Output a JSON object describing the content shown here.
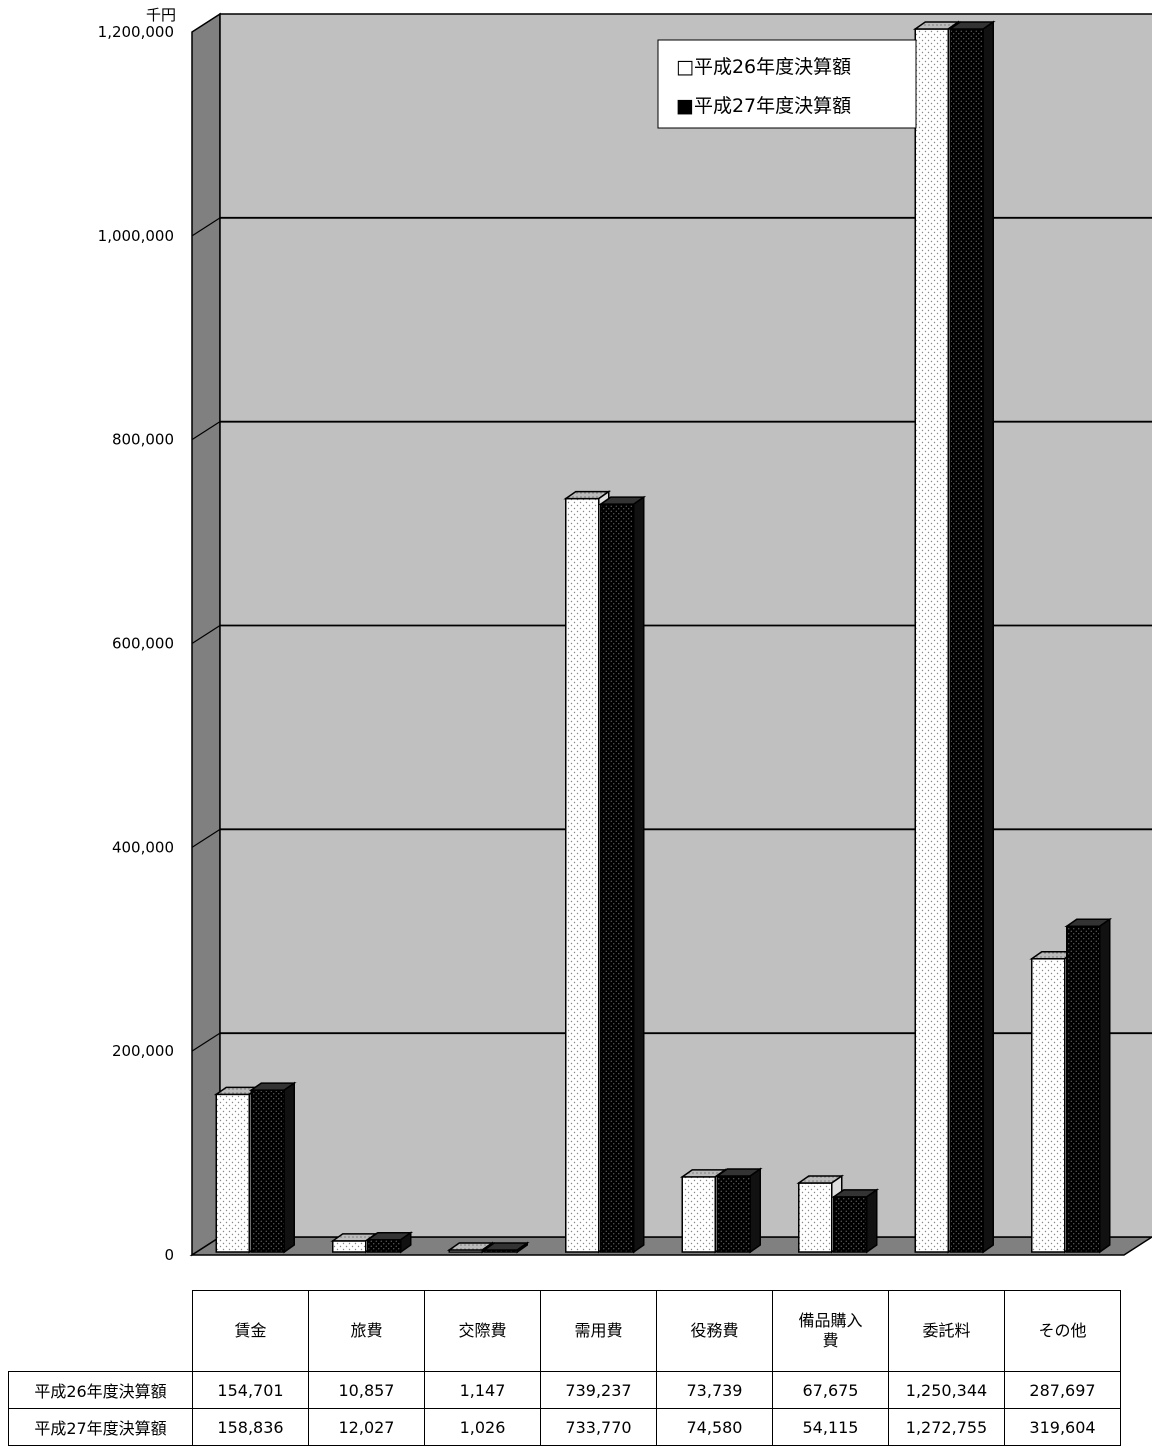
{
  "chart_data": {
    "type": "bar",
    "unit_label": "千円",
    "ylim": [
      0,
      1200000
    ],
    "ytick_values": [
      0,
      200000,
      400000,
      600000,
      800000,
      1000000,
      1200000
    ],
    "ytick_labels": [
      "0",
      "200,000",
      "400,000",
      "600,000",
      "800,000",
      "1,000,000",
      "1,200,000"
    ],
    "grid": true,
    "legend_position": "top-right",
    "categories": [
      "賃金",
      "旅費",
      "交際費",
      "需用費",
      "役務費",
      "備品購入費",
      "委託料",
      "その他"
    ],
    "category_lines": [
      [
        "賃金"
      ],
      [
        "旅費"
      ],
      [
        "交際費"
      ],
      [
        "需用費"
      ],
      [
        "役務費"
      ],
      [
        "備品購入",
        "費"
      ],
      [
        "委託料"
      ],
      [
        "その他"
      ]
    ],
    "series": [
      {
        "name": "平成26年度決算額",
        "legend_label": "□平成26年度決算額",
        "values": [
          154701,
          10857,
          1147,
          739237,
          73739,
          67675,
          1250344,
          287697
        ],
        "labels": [
          "154,701",
          "10,857",
          "1,147",
          "739,237",
          "73,739",
          "67,675",
          "1,250,344",
          "287,697"
        ]
      },
      {
        "name": "平成27年度決算額",
        "legend_label": "■平成27年度決算額",
        "values": [
          158836,
          12027,
          1026,
          733770,
          74580,
          54115,
          1272755,
          319604
        ],
        "labels": [
          "158,836",
          "12,027",
          "1,026",
          "733,770",
          "74,580",
          "54,115",
          "1,272,755",
          "319,604"
        ]
      }
    ]
  },
  "colors": {
    "plot_background": "#c0c0c0",
    "wall_side": "#808080",
    "floor": "#808080",
    "series1_fill": "#ffffff",
    "series2_fill": "#000000"
  }
}
